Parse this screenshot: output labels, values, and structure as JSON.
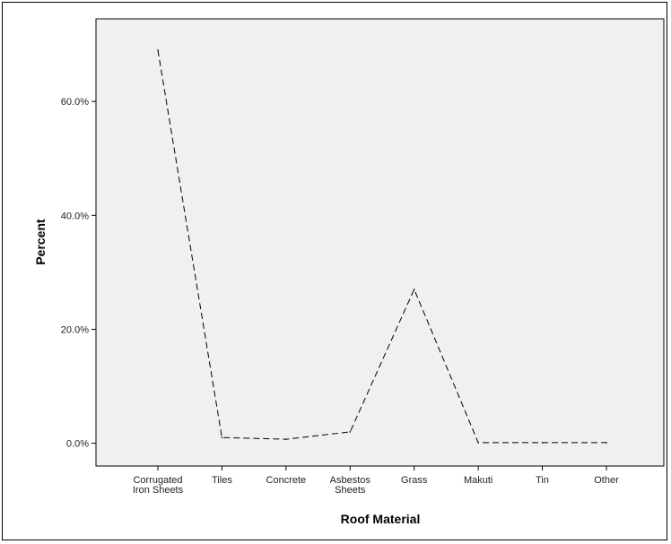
{
  "chart_data": {
    "type": "line",
    "xlabel": "Roof Material",
    "ylabel": "Percent",
    "categories": [
      [
        "Corrugated",
        "Iron Sheets"
      ],
      [
        "Tiles"
      ],
      [
        "Concrete"
      ],
      [
        "Asbestos",
        "Sheets"
      ],
      [
        "Grass"
      ],
      [
        "Makuti"
      ],
      [
        "Tin"
      ],
      [
        "Other"
      ]
    ],
    "values": [
      69.0,
      1.0,
      0.7,
      2.0,
      27.0,
      0.1,
      0.1,
      0.1
    ],
    "yticks": [
      {
        "value": 0,
        "label": "0.0%"
      },
      {
        "value": 20,
        "label": "20.0%"
      },
      {
        "value": 40,
        "label": "40.0%"
      },
      {
        "value": 60,
        "label": "60.0%"
      }
    ],
    "ylim": [
      -4,
      74.5
    ],
    "line_style": "dashed",
    "plot_background": "#f0f0f0",
    "line_color": "#000000",
    "grid": false,
    "legend": "none"
  }
}
